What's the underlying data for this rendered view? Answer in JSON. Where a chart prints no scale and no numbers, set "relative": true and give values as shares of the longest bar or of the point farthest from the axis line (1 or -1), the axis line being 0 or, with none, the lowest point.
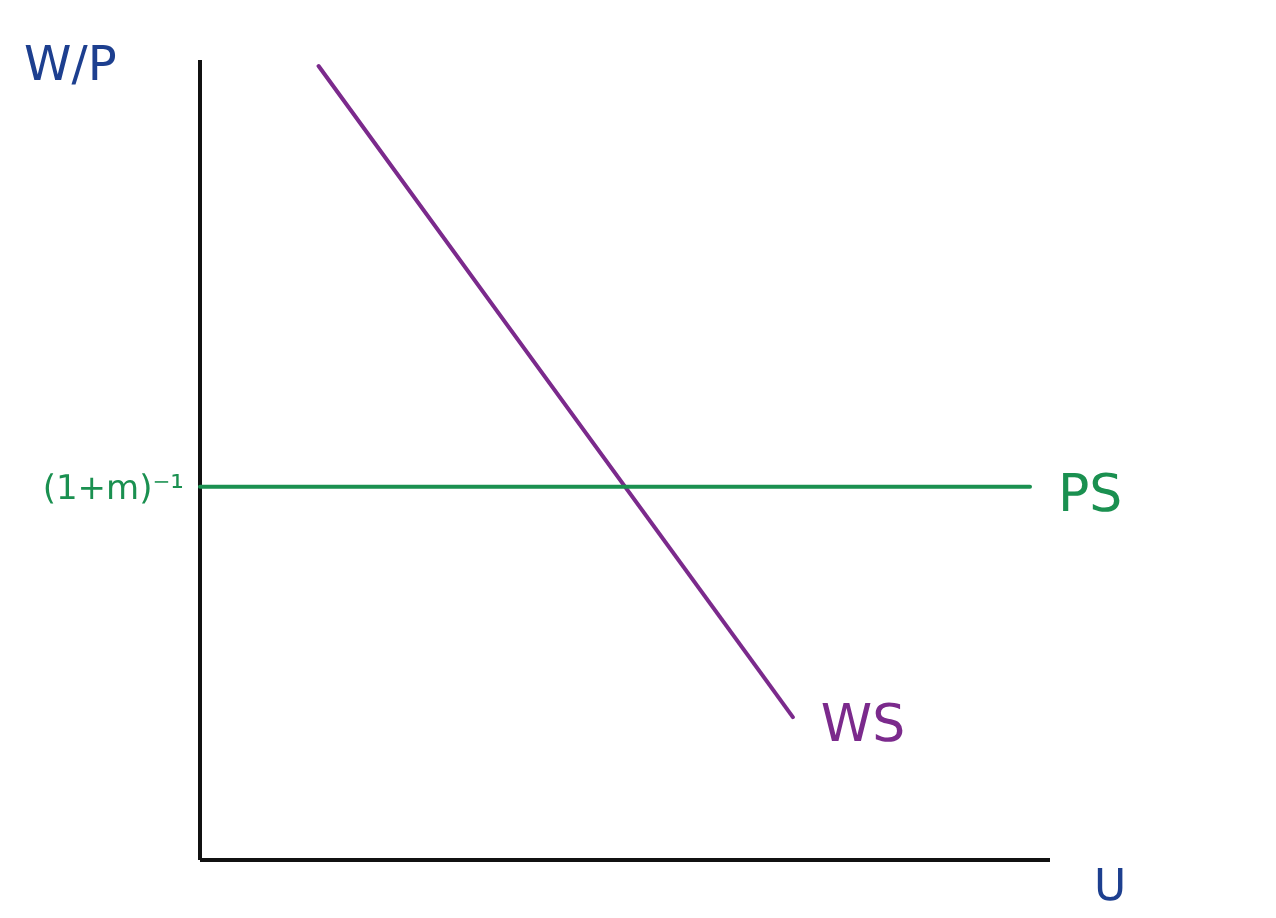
{
  "chart_data": {
    "type": "line",
    "relative": true,
    "xlabel": "U",
    "ylabel": "W/P",
    "categories": [
      null,
      null,
      null,
      null,
      null,
      null,
      null,
      null
    ],
    "series": [
      {
        "name": "WS",
        "color": "#7b2a8c",
        "values": [
          null,
          1,
          null,
          null,
          null,
          0.18,
          null,
          null
        ]
      },
      {
        "name": "PS",
        "color": "#1a9050",
        "values": [
          0.47,
          0.47,
          0.47,
          0.47,
          0.47,
          0.47,
          0.47,
          0.47
        ]
      }
    ],
    "annotations": [
      "(1+m)⁻¹"
    ]
  }
}
